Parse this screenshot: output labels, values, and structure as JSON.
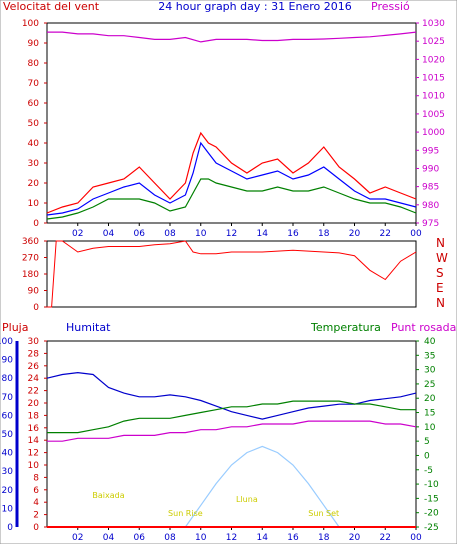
{
  "chart_data": [
    {
      "type": "line",
      "title": "24 hour graph day : 31 Enero 2016",
      "left_label": "Velocitat del vent",
      "right_label": "Pressió",
      "x": {
        "range": [
          0,
          24
        ],
        "ticks": [
          "02",
          "04",
          "06",
          "08",
          "10",
          "12",
          "14",
          "16",
          "18",
          "20",
          "22",
          "00"
        ]
      },
      "y_left": {
        "range": [
          0,
          100
        ],
        "ticks": [
          0,
          10,
          20,
          30,
          40,
          50,
          60,
          70,
          80,
          90,
          100
        ]
      },
      "y_right": {
        "range": [
          975,
          1030
        ],
        "ticks": [
          975,
          980,
          985,
          990,
          995,
          1000,
          1005,
          1010,
          1015,
          1020,
          1025,
          1030
        ]
      },
      "series": [
        {
          "axis": "left",
          "color": "#ff0000",
          "x": [
            0,
            1,
            2,
            3,
            4,
            5,
            6,
            7,
            8,
            9,
            9.5,
            10,
            10.5,
            11,
            12,
            13,
            14,
            15,
            16,
            17,
            18,
            19,
            20,
            21,
            22,
            23,
            24
          ],
          "values": [
            5,
            8,
            10,
            18,
            20,
            22,
            28,
            20,
            12,
            20,
            35,
            45,
            40,
            38,
            30,
            25,
            30,
            32,
            25,
            30,
            38,
            28,
            22,
            15,
            18,
            15,
            12
          ]
        },
        {
          "axis": "left",
          "color": "#0000ff",
          "x": [
            0,
            1,
            2,
            3,
            4,
            5,
            6,
            7,
            8,
            9,
            9.5,
            10,
            10.5,
            11,
            12,
            13,
            14,
            15,
            16,
            17,
            18,
            19,
            20,
            21,
            22,
            23,
            24
          ],
          "values": [
            4,
            5,
            7,
            12,
            15,
            18,
            20,
            14,
            10,
            14,
            25,
            40,
            35,
            30,
            26,
            22,
            24,
            26,
            22,
            24,
            28,
            22,
            16,
            12,
            12,
            10,
            8
          ]
        },
        {
          "axis": "left",
          "color": "#008000",
          "x": [
            0,
            1,
            2,
            3,
            4,
            5,
            6,
            7,
            8,
            9,
            9.5,
            10,
            10.5,
            11,
            12,
            13,
            14,
            15,
            16,
            17,
            18,
            19,
            20,
            21,
            22,
            23,
            24
          ],
          "values": [
            2,
            3,
            5,
            8,
            12,
            12,
            12,
            10,
            6,
            8,
            15,
            22,
            22,
            20,
            18,
            16,
            16,
            18,
            16,
            16,
            18,
            15,
            12,
            10,
            10,
            8,
            5
          ]
        },
        {
          "axis": "right",
          "color": "#cc00cc",
          "x": [
            0,
            1,
            2,
            3,
            4,
            5,
            6,
            7,
            8,
            9,
            10,
            11,
            12,
            13,
            14,
            15,
            16,
            17,
            18,
            19,
            20,
            21,
            22,
            23,
            24
          ],
          "values": [
            1027.5,
            1027.5,
            1027,
            1027,
            1026.5,
            1026.5,
            1026,
            1025.5,
            1025.5,
            1026,
            1024.8,
            1025.5,
            1025.5,
            1025.5,
            1025.2,
            1025.2,
            1025.5,
            1025.5,
            1025.6,
            1025.8,
            1026,
            1026.2,
            1026.6,
            1027,
            1027.5
          ]
        }
      ]
    },
    {
      "type": "line",
      "right_labels": [
        "N",
        "W",
        "S",
        "E",
        "N"
      ],
      "x": {
        "range": [
          0,
          24
        ]
      },
      "y_left": {
        "range": [
          0,
          360
        ],
        "ticks": [
          0,
          90,
          180,
          270,
          360
        ]
      },
      "series": [
        {
          "color": "#ff0000",
          "x": [
            0,
            0.3,
            0.6,
            1,
            2,
            3,
            4,
            5,
            6,
            7,
            8,
            9,
            9.5,
            10,
            11,
            12,
            13,
            14,
            15,
            16,
            17,
            18,
            19,
            20,
            21,
            22,
            23,
            24
          ],
          "values": [
            0,
            0,
            360,
            360,
            300,
            320,
            330,
            330,
            330,
            340,
            345,
            360,
            300,
            290,
            290,
            300,
            300,
            300,
            305,
            310,
            305,
            300,
            295,
            280,
            200,
            150,
            250,
            300
          ]
        }
      ]
    },
    {
      "type": "line",
      "labels": {
        "pluja": "Pluja",
        "humitat": "Humitat",
        "temperatura": "Temperatura",
        "punt_rosada": "Punt rosada"
      },
      "annotations": [
        "Baixada",
        "Sun Rise",
        "Lluna",
        "Sun Set"
      ],
      "x": {
        "range": [
          0,
          24
        ],
        "ticks": [
          "02",
          "04",
          "06",
          "08",
          "10",
          "12",
          "14",
          "16",
          "18",
          "20",
          "22",
          "00"
        ]
      },
      "y_rain": {
        "range": [
          0,
          30
        ],
        "ticks": [
          0,
          2,
          4,
          6,
          8,
          10,
          12,
          14,
          16,
          18,
          20,
          22,
          24,
          26,
          28,
          30
        ]
      },
      "y_humidity": {
        "range": [
          0,
          100
        ],
        "ticks": [
          0,
          10,
          20,
          30,
          40,
          50,
          60,
          70,
          80,
          90,
          100
        ]
      },
      "y_temp": {
        "range": [
          -25,
          40
        ],
        "ticks": [
          -25,
          -20,
          -15,
          -10,
          -5,
          0,
          5,
          10,
          15,
          20,
          25,
          30,
          35,
          40
        ]
      },
      "series": [
        {
          "name": "Humitat",
          "axis": "humidity",
          "color": "#0000cc",
          "x": [
            0,
            1,
            2,
            3,
            4,
            5,
            6,
            7,
            8,
            9,
            10,
            11,
            12,
            13,
            14,
            15,
            16,
            17,
            18,
            19,
            20,
            21,
            22,
            23,
            24
          ],
          "values": [
            80,
            82,
            83,
            82,
            75,
            72,
            70,
            70,
            71,
            70,
            68,
            65,
            62,
            60,
            58,
            60,
            62,
            64,
            65,
            66,
            66,
            68,
            69,
            70,
            72
          ]
        },
        {
          "name": "Temperatura",
          "axis": "temp",
          "color": "#008000",
          "x": [
            0,
            1,
            2,
            3,
            4,
            5,
            6,
            7,
            8,
            9,
            10,
            11,
            12,
            13,
            14,
            15,
            16,
            17,
            18,
            19,
            20,
            21,
            22,
            23,
            24
          ],
          "values": [
            8,
            8,
            8,
            9,
            10,
            12,
            13,
            13,
            13,
            14,
            15,
            16,
            17,
            17,
            18,
            18,
            19,
            19,
            19,
            19,
            18,
            18,
            17,
            16,
            16
          ]
        },
        {
          "name": "Punt rosada",
          "axis": "temp",
          "color": "#cc00cc",
          "x": [
            0,
            1,
            2,
            3,
            4,
            5,
            6,
            7,
            8,
            9,
            10,
            11,
            12,
            13,
            14,
            15,
            16,
            17,
            18,
            19,
            20,
            21,
            22,
            23,
            24
          ],
          "values": [
            5,
            5,
            6,
            6,
            6,
            7,
            7,
            7,
            8,
            8,
            9,
            9,
            10,
            10,
            11,
            11,
            11,
            12,
            12,
            12,
            12,
            12,
            11,
            11,
            10
          ]
        },
        {
          "name": "Sun",
          "axis": "rain",
          "color": "#99ccff",
          "x": [
            9,
            10,
            11,
            12,
            13,
            14,
            15,
            16,
            17,
            18,
            19
          ],
          "values": [
            0,
            3.5,
            7,
            10,
            12,
            13,
            12,
            10,
            7,
            3.5,
            0
          ]
        },
        {
          "name": "Pluja",
          "axis": "rain",
          "color": "#ff0000",
          "x": [
            0,
            24
          ],
          "values": [
            0,
            0
          ]
        }
      ]
    }
  ]
}
